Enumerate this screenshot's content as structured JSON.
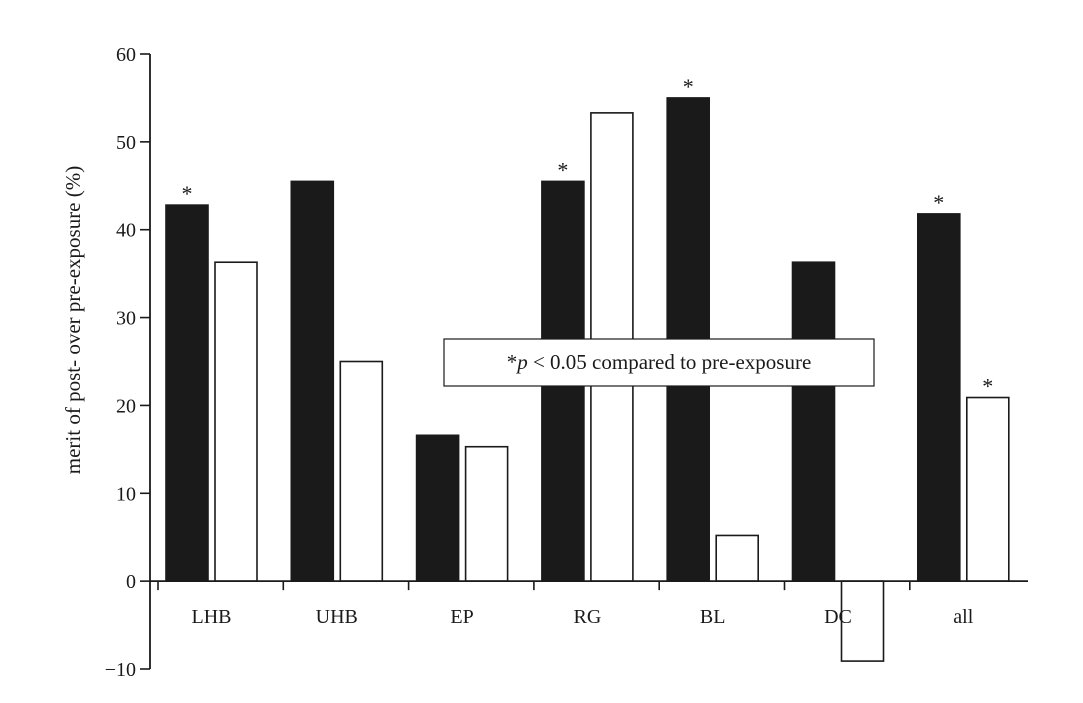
{
  "chart_data": {
    "type": "bar",
    "categories": [
      "LHB",
      "UHB",
      "EP",
      "RG",
      "BL",
      "DC",
      "all"
    ],
    "series": [
      {
        "fill": "#1a1a1a",
        "values": [
          42.8,
          45.5,
          16.6,
          45.5,
          55.0,
          36.3,
          41.8
        ],
        "significant": [
          true,
          false,
          false,
          true,
          true,
          false,
          true
        ]
      },
      {
        "fill": "#ffffff",
        "values": [
          36.3,
          25.0,
          15.3,
          53.3,
          5.2,
          -9.1,
          20.9
        ],
        "significant": [
          false,
          false,
          false,
          false,
          false,
          false,
          true
        ]
      }
    ],
    "ylabel": "merit of post- over pre-exposure (%)",
    "ylim": [
      -10,
      60
    ],
    "yticks": [
      -10,
      0,
      10,
      20,
      30,
      40,
      50,
      60
    ],
    "grid": false,
    "significance_marker": "*",
    "annotation": {
      "prefix": "*",
      "italic": "p",
      "rest": " < 0.05 compared to pre-exposure"
    },
    "colors": {
      "axis": "#1a1a1a",
      "bar_outline": "#1a1a1a"
    }
  }
}
